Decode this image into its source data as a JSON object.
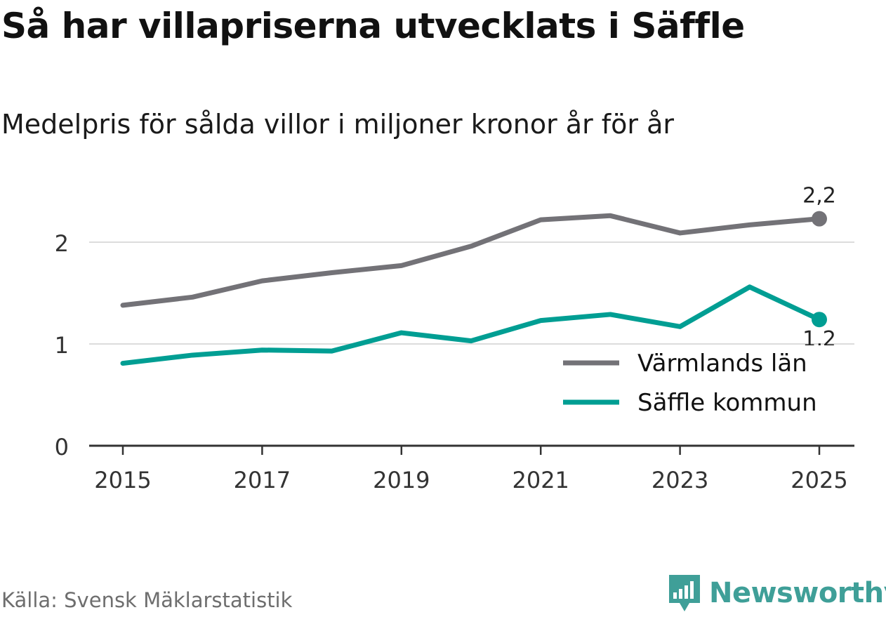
{
  "header": {
    "title": "Så har villapriserna utvecklats i Säffle",
    "subtitle": "Medelpris för sålda villor i miljoner kronor år för år"
  },
  "footer": {
    "source": "Källa: Svensk Mäklarstatistik",
    "brand": "Newsworthy",
    "brand_color": "#3f9f98"
  },
  "chart_data": {
    "type": "line",
    "title": "Så har villapriserna utvecklats i Säffle",
    "subtitle": "Medelpris för sålda villor i miljoner kronor år för år",
    "xlabel": "",
    "ylabel": "",
    "x": [
      2015,
      2016,
      2017,
      2018,
      2019,
      2020,
      2021,
      2022,
      2023,
      2024,
      2025
    ],
    "xticks": [
      "2015",
      "2017",
      "2019",
      "2021",
      "2023",
      "2025"
    ],
    "yticks": [
      "0",
      "1",
      "2"
    ],
    "ylim": [
      0,
      2.6
    ],
    "grid": true,
    "legend_position": "bottom-right",
    "series": [
      {
        "name": "Värmlands län",
        "color": "#737277",
        "values": [
          1.38,
          1.46,
          1.62,
          1.7,
          1.77,
          1.96,
          2.22,
          2.26,
          2.09,
          2.17,
          2.23
        ],
        "end_label": "2,2"
      },
      {
        "name": "Säffle kommun",
        "color": "#009e93",
        "values": [
          0.81,
          0.89,
          0.94,
          0.93,
          1.11,
          1.03,
          1.23,
          1.29,
          1.17,
          1.56,
          1.24
        ],
        "end_label": "1,2"
      }
    ]
  }
}
